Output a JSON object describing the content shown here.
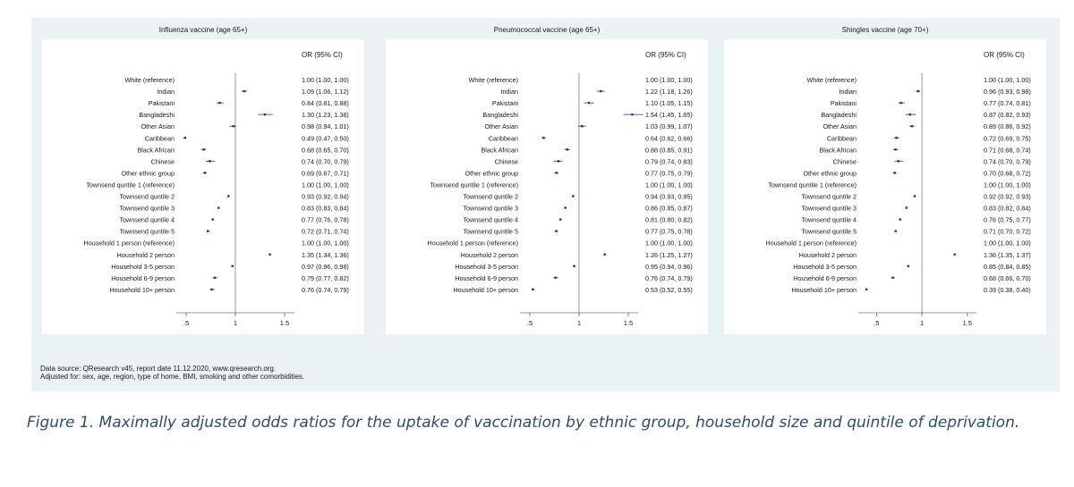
{
  "chart_data": [
    {
      "type": "forest",
      "title": "Influenza vaccine (age 65+)",
      "column_header": "OR (95% CI)",
      "x_ticks": [
        ".5",
        "1",
        "1.5"
      ],
      "x_tick_values": [
        0.5,
        1,
        1.5
      ],
      "xlim": [
        0.4,
        1.6
      ],
      "rows": [
        {
          "label": "White (reference)",
          "or": 1.0,
          "lo": 1.0,
          "hi": 1.0,
          "ci_text": "1.00 (1.00, 1.00)"
        },
        {
          "label": "Indian",
          "or": 1.09,
          "lo": 1.06,
          "hi": 1.12,
          "ci_text": "1.09 (1.06, 1.12)"
        },
        {
          "label": "Pakistani",
          "or": 0.84,
          "lo": 0.81,
          "hi": 0.88,
          "ci_text": "0.84 (0.81, 0.88)"
        },
        {
          "label": "Bangladeshi",
          "or": 1.3,
          "lo": 1.23,
          "hi": 1.38,
          "ci_text": "1.30 (1.23, 1.38)"
        },
        {
          "label": "Other Asian",
          "or": 0.98,
          "lo": 0.94,
          "hi": 1.01,
          "ci_text": "0.98 (0.94, 1.01)"
        },
        {
          "label": "Caribbean",
          "or": 0.49,
          "lo": 0.47,
          "hi": 0.5,
          "ci_text": "0.49 (0.47, 0.50)"
        },
        {
          "label": "Black African",
          "or": 0.68,
          "lo": 0.65,
          "hi": 0.7,
          "ci_text": "0.68 (0.65, 0.70)"
        },
        {
          "label": "Chinese",
          "or": 0.74,
          "lo": 0.7,
          "hi": 0.79,
          "ci_text": "0.74 (0.70, 0.79)"
        },
        {
          "label": "Other ethnic group",
          "or": 0.69,
          "lo": 0.67,
          "hi": 0.71,
          "ci_text": "0.69 (0.67, 0.71)"
        },
        {
          "label": "Townsend quntile 1 (reference)",
          "or": 1.0,
          "lo": 1.0,
          "hi": 1.0,
          "ci_text": "1.00 (1.00, 1.00)"
        },
        {
          "label": "Townsend quntile 2",
          "or": 0.93,
          "lo": 0.92,
          "hi": 0.94,
          "ci_text": "0.93 (0.92, 0.94)"
        },
        {
          "label": "Townsend quntile 3",
          "or": 0.83,
          "lo": 0.83,
          "hi": 0.84,
          "ci_text": "0.83 (0.83, 0.84)"
        },
        {
          "label": "Townsend quntile 4",
          "or": 0.77,
          "lo": 0.76,
          "hi": 0.78,
          "ci_text": "0.77 (0.76, 0.78)"
        },
        {
          "label": "Townsend quntile 5",
          "or": 0.72,
          "lo": 0.71,
          "hi": 0.74,
          "ci_text": "0.72 (0.71, 0.74)"
        },
        {
          "label": "Household 1 person (reference)",
          "or": 1.0,
          "lo": 1.0,
          "hi": 1.0,
          "ci_text": "1.00 (1.00, 1.00)"
        },
        {
          "label": "Household 2 person",
          "or": 1.35,
          "lo": 1.34,
          "hi": 1.36,
          "ci_text": "1.35 (1.34, 1.36)"
        },
        {
          "label": "Household 3-5 person",
          "or": 0.97,
          "lo": 0.96,
          "hi": 0.98,
          "ci_text": "0.97 (0.96, 0.98)"
        },
        {
          "label": "Household 6-9 person",
          "or": 0.79,
          "lo": 0.77,
          "hi": 0.82,
          "ci_text": "0.79 (0.77, 0.82)"
        },
        {
          "label": "Household 10+ person",
          "or": 0.76,
          "lo": 0.74,
          "hi": 0.79,
          "ci_text": "0.76 (0.74, 0.79)"
        }
      ]
    },
    {
      "type": "forest",
      "title": "Pneumococcal vaccine (age 65+)",
      "column_header": "OR (95% CI)",
      "x_ticks": [
        ".5",
        "1",
        "1.5"
      ],
      "x_tick_values": [
        0.5,
        1,
        1.5
      ],
      "xlim": [
        0.4,
        1.6
      ],
      "rows": [
        {
          "label": "White (reference)",
          "or": 1.0,
          "lo": 1.0,
          "hi": 1.0,
          "ci_text": "1.00 (1.00, 1.00)"
        },
        {
          "label": "Indian",
          "or": 1.22,
          "lo": 1.18,
          "hi": 1.26,
          "ci_text": "1.22 (1.18, 1.26)"
        },
        {
          "label": "Pakistani",
          "or": 1.1,
          "lo": 1.05,
          "hi": 1.15,
          "ci_text": "1.10 (1.05, 1.15)"
        },
        {
          "label": "Bangladeshi",
          "or": 1.54,
          "lo": 1.45,
          "hi": 1.65,
          "ci_text": "1.54 (1.45, 1.65)"
        },
        {
          "label": "Other Asian",
          "or": 1.03,
          "lo": 0.99,
          "hi": 1.07,
          "ci_text": "1.03 (0.99, 1.07)"
        },
        {
          "label": "Caribbean",
          "or": 0.64,
          "lo": 0.62,
          "hi": 0.66,
          "ci_text": "0.64 (0.62, 0.66)"
        },
        {
          "label": "Black African",
          "or": 0.88,
          "lo": 0.85,
          "hi": 0.91,
          "ci_text": "0.88 (0.85, 0.91)"
        },
        {
          "label": "Chinese",
          "or": 0.79,
          "lo": 0.74,
          "hi": 0.83,
          "ci_text": "0.79 (0.74, 0.83)"
        },
        {
          "label": "Other ethnic group",
          "or": 0.77,
          "lo": 0.75,
          "hi": 0.79,
          "ci_text": "0.77 (0.75, 0.79)"
        },
        {
          "label": "Townsend quntile 1 (reference)",
          "or": 1.0,
          "lo": 1.0,
          "hi": 1.0,
          "ci_text": "1.00 (1.00, 1.00)"
        },
        {
          "label": "Townsend quntile 2",
          "or": 0.94,
          "lo": 0.93,
          "hi": 0.95,
          "ci_text": "0.94 (0.93, 0.95)"
        },
        {
          "label": "Townsend quntile 3",
          "or": 0.86,
          "lo": 0.85,
          "hi": 0.87,
          "ci_text": "0.86 (0.85, 0.87)"
        },
        {
          "label": "Townsend quntile 4",
          "or": 0.81,
          "lo": 0.8,
          "hi": 0.82,
          "ci_text": "0.81 (0.80, 0.82)"
        },
        {
          "label": "Townsend quntile 5",
          "or": 0.77,
          "lo": 0.75,
          "hi": 0.78,
          "ci_text": "0.77 (0.75, 0.78)"
        },
        {
          "label": "Household 1 person (reference)",
          "or": 1.0,
          "lo": 1.0,
          "hi": 1.0,
          "ci_text": "1.00 (1.00, 1.00)"
        },
        {
          "label": "Household 2 person",
          "or": 1.26,
          "lo": 1.25,
          "hi": 1.27,
          "ci_text": "1.26 (1.25, 1.27)"
        },
        {
          "label": "Household 3-5 person",
          "or": 0.95,
          "lo": 0.94,
          "hi": 0.96,
          "ci_text": "0.95 (0.94, 0.96)"
        },
        {
          "label": "Household 6-9 person",
          "or": 0.76,
          "lo": 0.74,
          "hi": 0.79,
          "ci_text": "0.76 (0.74, 0.79)"
        },
        {
          "label": "Household 10+ person",
          "or": 0.53,
          "lo": 0.52,
          "hi": 0.55,
          "ci_text": "0.53 (0.52, 0.55)"
        }
      ]
    },
    {
      "type": "forest",
      "title": "Shingles vaccine (age 70+)",
      "column_header": "OR (95% CI)",
      "x_ticks": [
        ".5",
        "1",
        "1.5"
      ],
      "x_tick_values": [
        0.5,
        1,
        1.5
      ],
      "xlim": [
        0.3,
        1.6
      ],
      "rows": [
        {
          "label": "White (reference)",
          "or": 1.0,
          "lo": 1.0,
          "hi": 1.0,
          "ci_text": "1.00 (1.00, 1.00)"
        },
        {
          "label": "Indian",
          "or": 0.96,
          "lo": 0.93,
          "hi": 0.98,
          "ci_text": "0.96 (0.93, 0.98)"
        },
        {
          "label": "Pakistani",
          "or": 0.77,
          "lo": 0.74,
          "hi": 0.81,
          "ci_text": "0.77 (0.74, 0.81)"
        },
        {
          "label": "Bangladeshi",
          "or": 0.87,
          "lo": 0.82,
          "hi": 0.93,
          "ci_text": "0.87 (0.82, 0.93)"
        },
        {
          "label": "Other Asian",
          "or": 0.89,
          "lo": 0.86,
          "hi": 0.92,
          "ci_text": "0.89 (0.86, 0.92)"
        },
        {
          "label": "Caribbean",
          "or": 0.72,
          "lo": 0.69,
          "hi": 0.75,
          "ci_text": "0.72 (0.69, 0.75)"
        },
        {
          "label": "Black African",
          "or": 0.71,
          "lo": 0.68,
          "hi": 0.74,
          "ci_text": "0.71 (0.68, 0.74)"
        },
        {
          "label": "Chinese",
          "or": 0.74,
          "lo": 0.7,
          "hi": 0.79,
          "ci_text": "0.74 (0.70, 0.79)"
        },
        {
          "label": "Other ethnic group",
          "or": 0.7,
          "lo": 0.68,
          "hi": 0.72,
          "ci_text": "0.70 (0.68, 0.72)"
        },
        {
          "label": "Townsend quntile 1 (reference)",
          "or": 1.0,
          "lo": 1.0,
          "hi": 1.0,
          "ci_text": "1.00 (1.00, 1.00)"
        },
        {
          "label": "Townsend quntile 2",
          "or": 0.92,
          "lo": 0.92,
          "hi": 0.93,
          "ci_text": "0.92 (0.92, 0.93)"
        },
        {
          "label": "Townsend quntile 3",
          "or": 0.83,
          "lo": 0.82,
          "hi": 0.84,
          "ci_text": "0.83 (0.82, 0.84)"
        },
        {
          "label": "Townsend quntile 4",
          "or": 0.76,
          "lo": 0.75,
          "hi": 0.77,
          "ci_text": "0.76 (0.75, 0.77)"
        },
        {
          "label": "Townsend quntile 5",
          "or": 0.71,
          "lo": 0.7,
          "hi": 0.72,
          "ci_text": "0.71 (0.70, 0.72)"
        },
        {
          "label": "Household 1 person (reference)",
          "or": 1.0,
          "lo": 1.0,
          "hi": 1.0,
          "ci_text": "1.00 (1.00, 1.00)"
        },
        {
          "label": "Household 2 person",
          "or": 1.36,
          "lo": 1.35,
          "hi": 1.37,
          "ci_text": "1.36 (1.35, 1.37)"
        },
        {
          "label": "Household 3-5 person",
          "or": 0.85,
          "lo": 0.84,
          "hi": 0.85,
          "ci_text": "0.85 (0.84, 0.85)"
        },
        {
          "label": "Household 6-9 person",
          "or": 0.68,
          "lo": 0.66,
          "hi": 0.7,
          "ci_text": "0.68 (0.66, 0.70)"
        },
        {
          "label": "Household 10+ person",
          "or": 0.39,
          "lo": 0.38,
          "hi": 0.4,
          "ci_text": "0.39 (0.38, 0.40)"
        }
      ]
    }
  ],
  "source_note": {
    "line1": "Data source: QResearch v45, report date 11.12.2020, www.qresearch.org.",
    "line2": "Adjusted for: sex, age, region, type of home, BMI, smoking and other comorbidities."
  },
  "caption": "Figure 1. Maximally adjusted odds ratios for the uptake of vaccination by ethnic group, household size and quintile of deprivation.",
  "colors": {
    "figure_background": "#eaf2f3",
    "panel_background": "#ffffff",
    "marker": "#1f3b6e",
    "text": "#1a1a1a",
    "caption": "#2e4e6e"
  }
}
